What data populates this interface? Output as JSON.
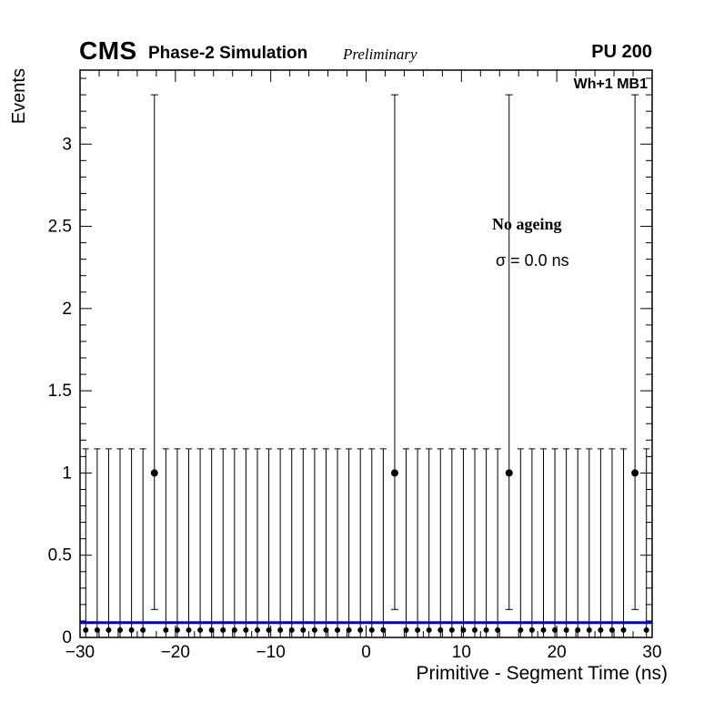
{
  "header": {
    "cms": "CMS",
    "subtitle": "Phase-2 Simulation",
    "preliminary": "Preliminary",
    "pu": "PU 200"
  },
  "annotations": {
    "region": "Wh+1 MB1",
    "ageing": "No ageing",
    "sigma": "σ = 0.0 ns"
  },
  "chart_data": {
    "type": "scatter",
    "title": "",
    "xlabel": "Primitive - Segment Time (ns)",
    "ylabel": "Events",
    "xlim": [
      -30,
      30
    ],
    "ylim": [
      0,
      3.45
    ],
    "x_major_ticks": [
      -30,
      -20,
      -10,
      0,
      10,
      20,
      30
    ],
    "x_minor_step": 2,
    "y_major_ticks": [
      0,
      0.5,
      1,
      1.5,
      2,
      2.5,
      3
    ],
    "y_minor_step": 0.1,
    "grid": false,
    "legend": "none",
    "n_bins": 50,
    "bin_width": 1.2,
    "empty_bins": {
      "y": 0,
      "marker_y": 0.045,
      "err_low": 0,
      "err_up": 1.147
    },
    "filled_bins": {
      "x": [
        -22.2,
        3.0,
        15.0,
        28.2
      ],
      "y": 1,
      "err_low": 0.17,
      "err_up": 3.3
    },
    "fit_line": {
      "y": 0.09,
      "color": "#0000cc"
    },
    "marker_color": "#000000",
    "axis_color": "#000000"
  }
}
